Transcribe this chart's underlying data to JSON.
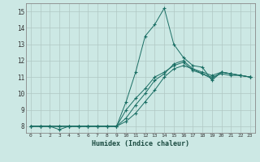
{
  "xlabel": "Humidex (Indice chaleur)",
  "ylabel": "",
  "background_color": "#cce8e4",
  "grid_color": "#b0c8c4",
  "line_color": "#1a6e64",
  "xlim": [
    -0.5,
    23.5
  ],
  "ylim": [
    7.6,
    15.5
  ],
  "xticks": [
    0,
    1,
    2,
    3,
    4,
    5,
    6,
    7,
    8,
    9,
    10,
    11,
    12,
    13,
    14,
    15,
    16,
    17,
    18,
    19,
    20,
    21,
    22,
    23
  ],
  "yticks": [
    8,
    9,
    10,
    11,
    12,
    13,
    14,
    15
  ],
  "series": [
    [
      8.0,
      8.0,
      8.0,
      7.8,
      8.0,
      8.0,
      8.0,
      8.0,
      8.0,
      8.0,
      9.5,
      11.3,
      13.5,
      14.2,
      15.2,
      13.0,
      12.2,
      11.7,
      11.6,
      10.8,
      11.3,
      11.2,
      11.1,
      11.0
    ],
    [
      8.0,
      8.0,
      8.0,
      8.0,
      8.0,
      8.0,
      8.0,
      8.0,
      8.0,
      8.0,
      8.3,
      8.8,
      9.5,
      10.2,
      11.0,
      11.5,
      11.7,
      11.5,
      11.2,
      11.0,
      11.2,
      11.1,
      11.1,
      11.0
    ],
    [
      8.0,
      8.0,
      8.0,
      8.0,
      8.0,
      8.0,
      8.0,
      8.0,
      8.0,
      8.0,
      8.5,
      9.3,
      10.0,
      10.8,
      11.2,
      11.8,
      12.0,
      11.5,
      11.3,
      11.1,
      11.3,
      11.2,
      11.1,
      11.0
    ],
    [
      8.0,
      8.0,
      8.0,
      8.0,
      8.0,
      8.0,
      8.0,
      8.0,
      8.0,
      8.0,
      9.0,
      9.7,
      10.3,
      11.0,
      11.3,
      11.7,
      11.9,
      11.4,
      11.2,
      10.9,
      11.3,
      11.2,
      11.1,
      11.0
    ]
  ]
}
